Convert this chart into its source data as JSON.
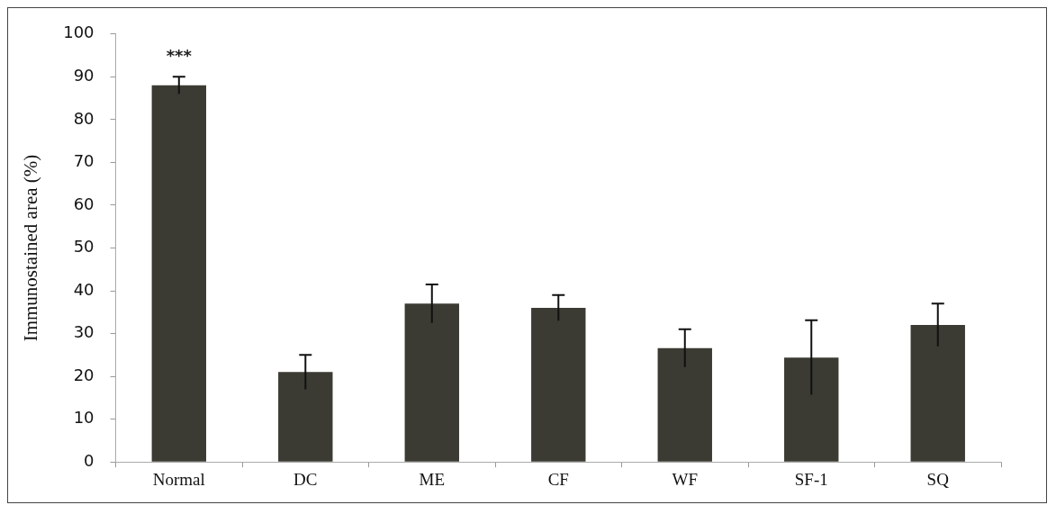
{
  "chart_data": {
    "type": "bar",
    "ylabel": "Immunostained area (%)",
    "categories": [
      "Normal",
      "DC",
      "ME",
      "CF",
      "WF",
      "SF-1",
      "SQ"
    ],
    "values": [
      88,
      21,
      37,
      36,
      26.6,
      24.4,
      32
    ],
    "errors": [
      2,
      4,
      4.5,
      3,
      4.4,
      8.7,
      5
    ],
    "color": "#3b3b33",
    "ylim": [
      0,
      100
    ],
    "yticks": [
      0,
      10,
      20,
      30,
      40,
      50,
      60,
      70,
      80,
      90,
      100
    ],
    "annotations": [
      "***"
    ],
    "grid": false,
    "legend": false
  }
}
